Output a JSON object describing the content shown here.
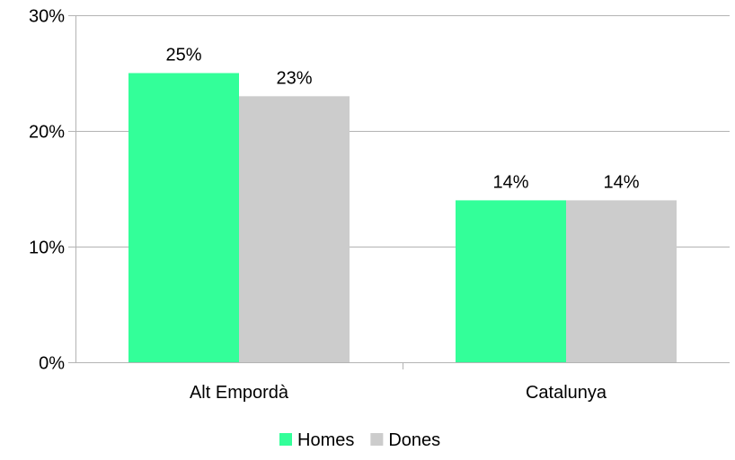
{
  "chart_data": {
    "type": "bar",
    "categories": [
      "Alt Empordà",
      "Catalunya"
    ],
    "series": [
      {
        "name": "Homes",
        "values": [
          25,
          14
        ],
        "labels": [
          "25%",
          "14%"
        ],
        "color": "#33ff99"
      },
      {
        "name": "Dones",
        "values": [
          23,
          14
        ],
        "labels": [
          "23%",
          "14%"
        ],
        "color": "#cccccc"
      }
    ],
    "yticks": [
      {
        "value": 0,
        "label": "0%"
      },
      {
        "value": 10,
        "label": "10%"
      },
      {
        "value": 20,
        "label": "20%"
      },
      {
        "value": 30,
        "label": "30%"
      }
    ],
    "ylim": [
      0,
      30
    ],
    "grid": true,
    "legend_position": "bottom",
    "gridline_color": "#b3b3b3",
    "axis_color": "#b3b3b3"
  }
}
